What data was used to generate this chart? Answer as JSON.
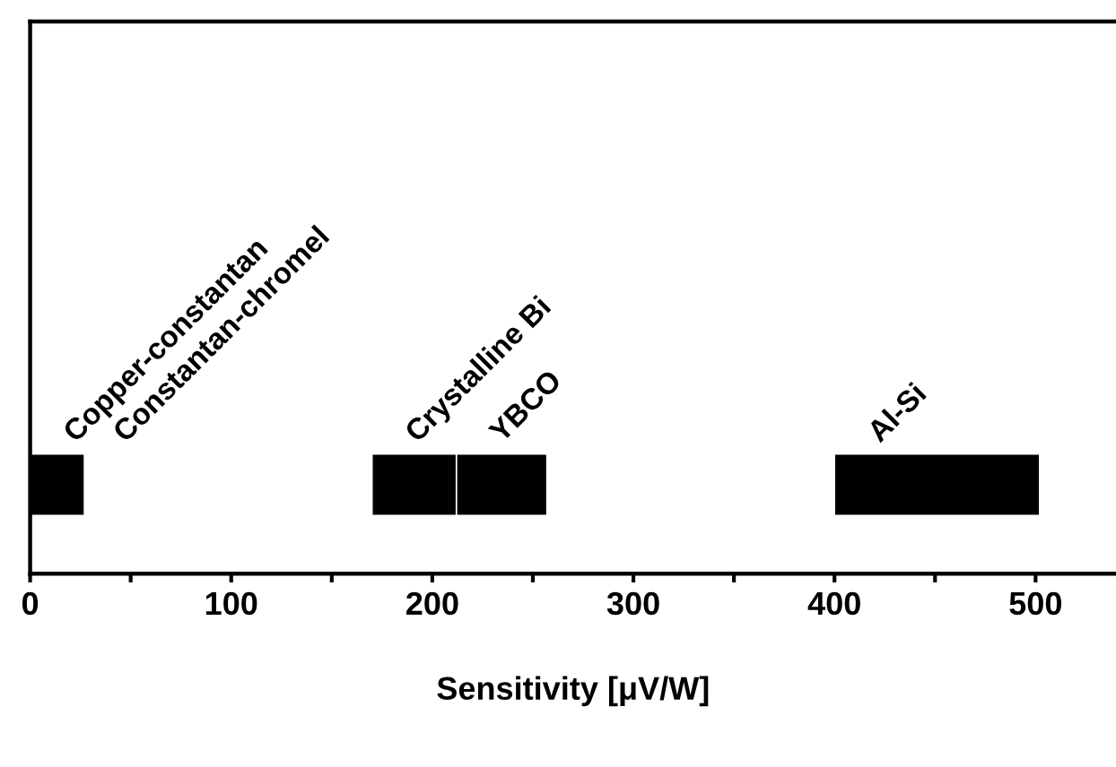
{
  "chart_data": {
    "type": "bar",
    "orientation": "horizontal",
    "xlabel": "Sensitivity [μV/W]",
    "categories": [
      null
    ],
    "series": [
      {
        "name": "Copper-constantan",
        "color": "#000000",
        "base": [
          0
        ],
        "values": [
          27
        ]
      },
      {
        "name": "Crystalline Bi",
        "color": "#000000",
        "base": [
          170
        ],
        "values": [
          42
        ]
      },
      {
        "name": "YBCO",
        "color": "#000000",
        "base": [
          212
        ],
        "values": [
          45
        ]
      },
      {
        "name": "Al-Si",
        "color": "#000000",
        "base": [
          400
        ],
        "values": [
          102
        ]
      }
    ],
    "xlim": [
      0,
      540
    ],
    "xticks": [
      0,
      {
        "value": 50,
        "label": null
      },
      100,
      {
        "value": 150,
        "label": null
      },
      200,
      {
        "value": 250,
        "label": null
      },
      300,
      {
        "value": 350,
        "label": null
      },
      400,
      {
        "value": 450,
        "label": null
      },
      500
    ],
    "tick_labels": "x",
    "grid": false,
    "annotations": [
      "Constantan-chromel"
    ]
  }
}
